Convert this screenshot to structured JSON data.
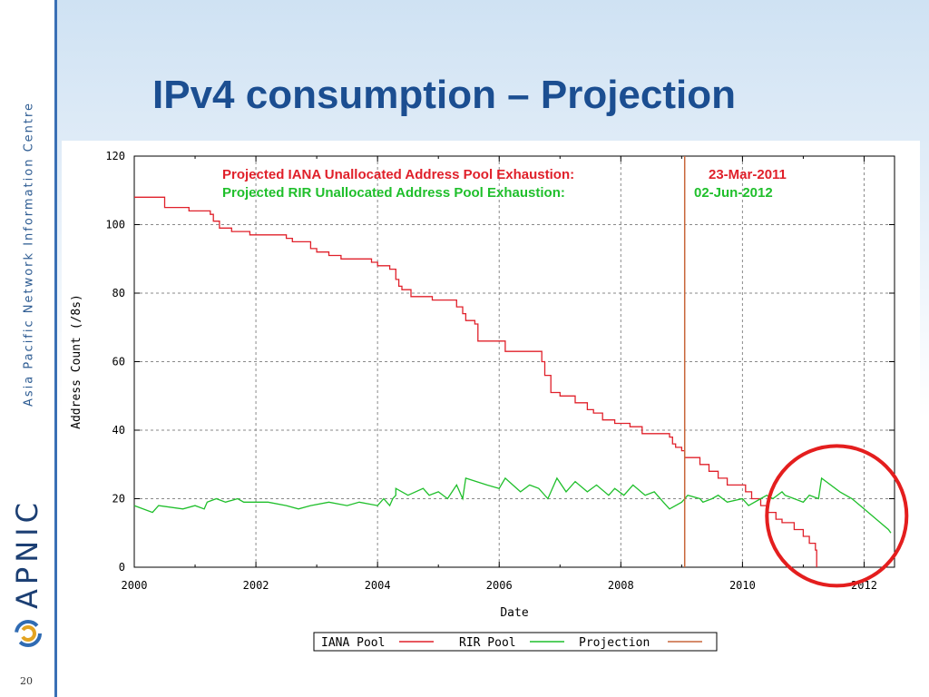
{
  "slide": {
    "title": "IPv4 consumption – Projection",
    "vertical_text": "Asia Pacific Network Information Centre",
    "logo_text": "APNIC",
    "page_number": "20"
  },
  "colors": {
    "title": "#1b4e91",
    "iana_pool": "#e0202a",
    "rir_pool": "#1fbf2b",
    "projection": "#c8663a",
    "highlight_circle": "#e41e1e"
  },
  "chart_data": {
    "type": "line",
    "title": "",
    "xlabel": "Date",
    "ylabel": "Address Count (/8s)",
    "xlim": [
      2000,
      2012.5
    ],
    "ylim": [
      0,
      120
    ],
    "x_ticks": [
      "2000",
      "2002",
      "2004",
      "2006",
      "2008",
      "2010",
      "2012"
    ],
    "y_ticks": [
      "0",
      "20",
      "40",
      "60",
      "80",
      "100",
      "120"
    ],
    "grid": true,
    "legend_position": "bottom-center",
    "annotations": [
      {
        "label": "Projected IANA Unallocated Address Pool Exhaustion:",
        "value": "23-Mar-2011",
        "color": "#e0202a"
      },
      {
        "label": "Projected RIR Unallocated Address Pool Exhaustion:",
        "value": "02-Jun-2012",
        "color": "#1fbf2b"
      }
    ],
    "series": [
      {
        "name": "IANA Pool",
        "type": "step",
        "points": [
          [
            2000,
            108
          ],
          [
            2000.1,
            108
          ],
          [
            2000.5,
            105
          ],
          [
            2000.9,
            104
          ],
          [
            2001.1,
            104
          ],
          [
            2001.25,
            103
          ],
          [
            2001.3,
            101
          ],
          [
            2001.4,
            99
          ],
          [
            2001.6,
            98
          ],
          [
            2001.9,
            97
          ],
          [
            2002.5,
            96
          ],
          [
            2002.6,
            95
          ],
          [
            2002.9,
            93
          ],
          [
            2003.0,
            92
          ],
          [
            2003.2,
            91
          ],
          [
            2003.4,
            90
          ],
          [
            2003.9,
            89
          ],
          [
            2004.0,
            88
          ],
          [
            2004.2,
            87
          ],
          [
            2004.3,
            84
          ],
          [
            2004.35,
            82
          ],
          [
            2004.4,
            81
          ],
          [
            2004.55,
            79
          ],
          [
            2004.9,
            78
          ],
          [
            2005.3,
            76
          ],
          [
            2005.4,
            74
          ],
          [
            2005.45,
            72
          ],
          [
            2005.6,
            71
          ],
          [
            2005.65,
            66
          ],
          [
            2006.1,
            66
          ],
          [
            2006.1,
            63
          ],
          [
            2006.65,
            63
          ],
          [
            2006.7,
            60
          ],
          [
            2006.75,
            56
          ],
          [
            2006.85,
            51
          ],
          [
            2007.0,
            50
          ],
          [
            2007.25,
            48
          ],
          [
            2007.45,
            46
          ],
          [
            2007.55,
            45
          ],
          [
            2007.7,
            43
          ],
          [
            2007.9,
            42
          ],
          [
            2008.15,
            41
          ],
          [
            2008.35,
            39
          ],
          [
            2008.75,
            39
          ],
          [
            2008.8,
            38
          ],
          [
            2008.85,
            36
          ],
          [
            2008.9,
            35
          ],
          [
            2009.0,
            34
          ],
          [
            2009.05,
            32
          ],
          [
            2009.3,
            30
          ],
          [
            2009.45,
            28
          ],
          [
            2009.6,
            26
          ],
          [
            2009.75,
            24
          ],
          [
            2010.05,
            22
          ],
          [
            2010.15,
            20
          ],
          [
            2010.3,
            18
          ],
          [
            2010.4,
            16
          ],
          [
            2010.55,
            14
          ],
          [
            2010.65,
            13
          ],
          [
            2010.85,
            11
          ],
          [
            2011.0,
            9
          ],
          [
            2011.1,
            7
          ],
          [
            2011.2,
            5
          ],
          [
            2011.22,
            0
          ]
        ]
      },
      {
        "name": "RIR Pool",
        "type": "line",
        "points": [
          [
            2000,
            18
          ],
          [
            2000.3,
            16
          ],
          [
            2000.4,
            18
          ],
          [
            2000.8,
            17
          ],
          [
            2001.0,
            18
          ],
          [
            2001.15,
            17
          ],
          [
            2001.2,
            19
          ],
          [
            2001.35,
            20
          ],
          [
            2001.5,
            19
          ],
          [
            2001.7,
            20
          ],
          [
            2001.8,
            19
          ],
          [
            2002.0,
            19
          ],
          [
            2002.2,
            19
          ],
          [
            2002.5,
            18
          ],
          [
            2002.7,
            17
          ],
          [
            2002.9,
            18
          ],
          [
            2003.2,
            19
          ],
          [
            2003.5,
            18
          ],
          [
            2003.7,
            19
          ],
          [
            2004.0,
            18
          ],
          [
            2004.1,
            20
          ],
          [
            2004.2,
            18
          ],
          [
            2004.25,
            20
          ],
          [
            2004.3,
            21
          ],
          [
            2004.3,
            23
          ],
          [
            2004.5,
            21
          ],
          [
            2004.75,
            23
          ],
          [
            2004.85,
            21
          ],
          [
            2005.0,
            22
          ],
          [
            2005.15,
            20
          ],
          [
            2005.3,
            24
          ],
          [
            2005.4,
            20
          ],
          [
            2005.45,
            26
          ],
          [
            2005.8,
            24
          ],
          [
            2006.0,
            23
          ],
          [
            2006.1,
            26
          ],
          [
            2006.35,
            22
          ],
          [
            2006.5,
            24
          ],
          [
            2006.65,
            23
          ],
          [
            2006.8,
            20
          ],
          [
            2006.95,
            26
          ],
          [
            2007.1,
            22
          ],
          [
            2007.25,
            25
          ],
          [
            2007.45,
            22
          ],
          [
            2007.6,
            24
          ],
          [
            2007.8,
            21
          ],
          [
            2007.9,
            23
          ],
          [
            2008.05,
            21
          ],
          [
            2008.2,
            24
          ],
          [
            2008.4,
            21
          ],
          [
            2008.55,
            22
          ],
          [
            2008.7,
            19
          ],
          [
            2008.8,
            17
          ],
          [
            2009.0,
            19
          ],
          [
            2009.1,
            21
          ],
          [
            2009.3,
            20
          ],
          [
            2009.35,
            19
          ],
          [
            2009.5,
            20
          ],
          [
            2009.6,
            21
          ],
          [
            2009.75,
            19
          ],
          [
            2010.0,
            20
          ],
          [
            2010.1,
            18
          ],
          [
            2010.3,
            20
          ],
          [
            2010.4,
            21
          ],
          [
            2010.5,
            20
          ],
          [
            2010.65,
            22
          ],
          [
            2010.7,
            21
          ],
          [
            2010.85,
            20
          ],
          [
            2011.0,
            19
          ],
          [
            2011.1,
            21
          ],
          [
            2011.25,
            20
          ],
          [
            2011.3,
            26
          ],
          [
            2011.6,
            22
          ],
          [
            2011.8,
            20
          ],
          [
            2012.0,
            17
          ],
          [
            2012.2,
            14
          ],
          [
            2012.4,
            11
          ],
          [
            2012.44,
            10
          ]
        ]
      },
      {
        "name": "Projection",
        "type": "vline",
        "x": 2009.05
      }
    ],
    "highlight": {
      "shape": "circle",
      "center": [
        2011.55,
        15
      ],
      "label": ""
    }
  }
}
